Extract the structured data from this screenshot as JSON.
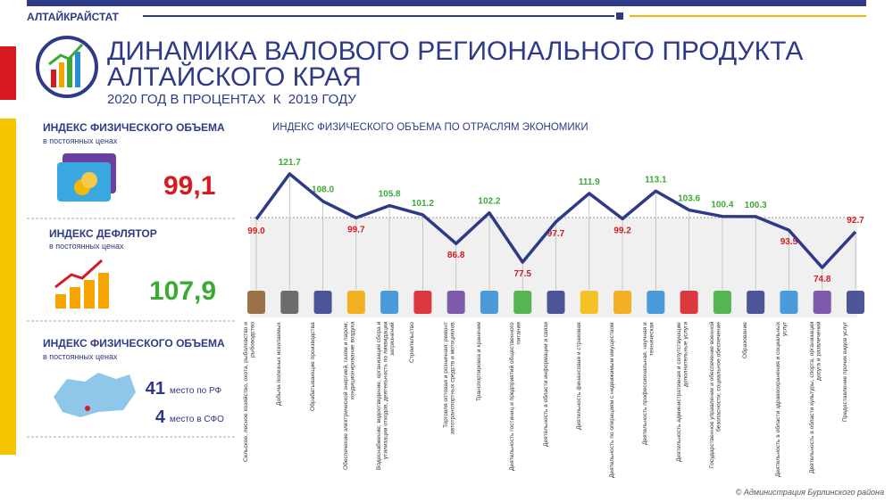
{
  "header": {
    "brand": "АЛТАЙКРАЙСТАТ",
    "title_lines": [
      "ДИНАМИКА ВАЛОВОГО РЕГИОНАЛЬНОГО ПРОДУКТА",
      "АЛТАЙСКОГО КРАЯ"
    ],
    "subtitle": "2020 ГОД В ПРОЦЕНТАХ  К  2019 ГОДУ"
  },
  "panels": [
    {
      "title": "ИНДЕКС ФИЗИЧЕСКОГО ОБЪЕМА",
      "note": "в постоянных ценах",
      "value": "99,1"
    },
    {
      "title": "ИНДЕКС ДЕФЛЯТОР",
      "note": "в постоянных ценах",
      "value": "107,9"
    },
    {
      "title": "ИНДЕКС ФИЗИЧЕСКОГО ОБЪЕМА",
      "note": "в постоянных ценах",
      "ranks": [
        {
          "value": "41",
          "label": "место по РФ"
        },
        {
          "value": "4",
          "label": "место в СФО"
        }
      ]
    }
  ],
  "chart_data": {
    "type": "line",
    "title": "ИНДЕКС ФИЗИЧЕСКОГО ОБЪЕМА ПО ОТРАСЛЯМ ЭКОНОМИКИ",
    "categories": [
      "Сельское, лесное хозяйство, охота, рыболовство и рыбоводство",
      "Добыча полезных ископаемых",
      "Обрабатывающие производства",
      "Обеспечение электрической энергией, газом и паром; кондиционирование воздуха",
      "Водоснабжение; водоотведение, организация сбора и утилизации отходов, деятельность по ликвидации загрязнений",
      "Строительство",
      "Торговля оптовая и розничная; ремонт автотранспортных средств и мотоциклов",
      "Транспортировка и хранение",
      "Деятельность гостиниц и предприятий общественного питания",
      "Деятельность в области информации и связи",
      "Деятельность финансовая и страховая",
      "Деятельность по операциям с недвижимым имуществом",
      "Деятельность профессиональная, научная и техническая",
      "Деятельность административная и сопутствующие дополнительные услуги",
      "Государственное управление и обеспечение военной безопасности; социальное обеспечение",
      "Образование",
      "Деятельность в области здравоохранения и социальных услуг",
      "Деятельность в области культуры, спорта, организации досуга и развлечений",
      "Предоставление прочих видов услуг"
    ],
    "values": [
      99.0,
      121.7,
      108.0,
      99.7,
      105.8,
      101.2,
      86.8,
      102.2,
      77.5,
      97.7,
      111.9,
      99.2,
      113.1,
      103.6,
      100.4,
      100.3,
      93.5,
      74.8,
      92.7
    ],
    "value_labels": [
      "99.0",
      "121.7",
      "108.0",
      "99.7",
      "105.8",
      "101.2",
      "86.8",
      "102.2",
      "77.5",
      "97.7",
      "111.9",
      "99.2",
      "113.1",
      "103.6",
      "100.4",
      "100.3",
      "93.5",
      "74.8",
      "92.7"
    ],
    "color": "#2e3a87",
    "ylim": [
      70,
      125
    ]
  },
  "footer": "© Администрация Бурлинского района"
}
